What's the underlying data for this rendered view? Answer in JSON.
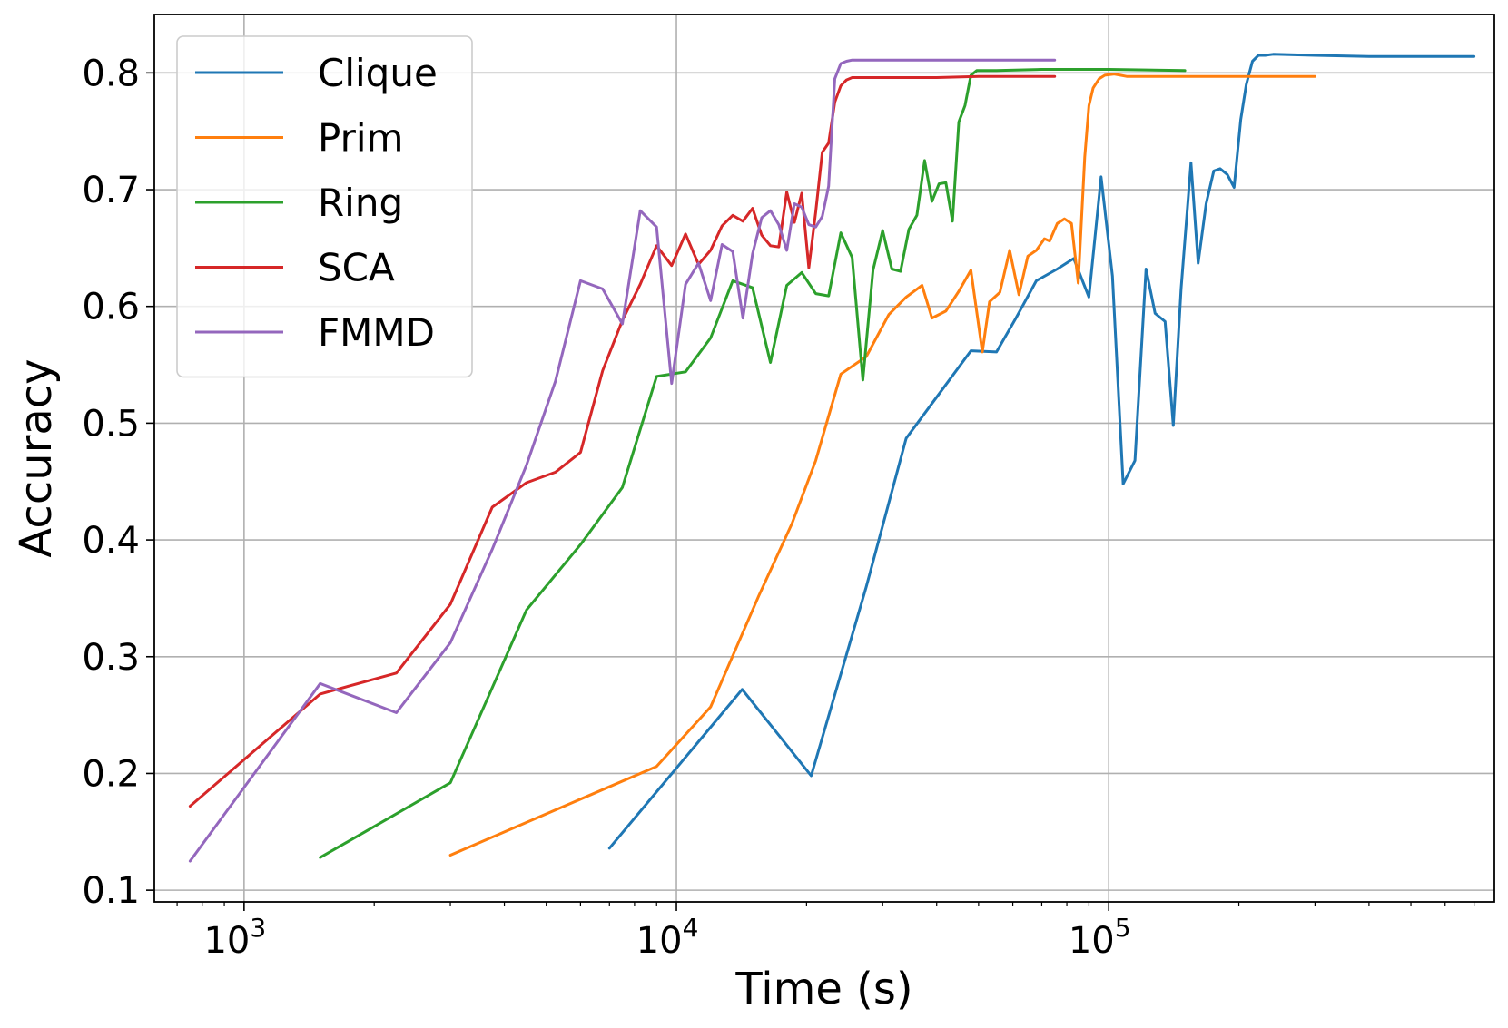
{
  "chart_data": {
    "type": "line",
    "title": "",
    "xlabel": "Time (s)",
    "ylabel": "Accuracy",
    "xscale": "log",
    "xlim": [
      620,
      780000
    ],
    "ylim": [
      0.09,
      0.85
    ],
    "grid": true,
    "legend_position": "upper-left",
    "x_ticks": [
      {
        "value": 1000,
        "base": "10",
        "exp": "3"
      },
      {
        "value": 10000,
        "base": "10",
        "exp": "4"
      },
      {
        "value": 100000,
        "base": "10",
        "exp": "5"
      }
    ],
    "y_ticks": [
      {
        "value": 0.1,
        "label": "0.1"
      },
      {
        "value": 0.2,
        "label": "0.2"
      },
      {
        "value": 0.3,
        "label": "0.3"
      },
      {
        "value": 0.4,
        "label": "0.4"
      },
      {
        "value": 0.5,
        "label": "0.5"
      },
      {
        "value": 0.6,
        "label": "0.6"
      },
      {
        "value": 0.7,
        "label": "0.7"
      },
      {
        "value": 0.8,
        "label": "0.8"
      }
    ],
    "series": [
      {
        "name": "Clique",
        "color": "#1f77b4",
        "x": [
          7000,
          14200,
          20500,
          27500,
          34000,
          40500,
          48000,
          55000,
          61000,
          68000,
          76000,
          83000,
          90000,
          96000,
          102000,
          108000,
          115000,
          122000,
          128000,
          135000,
          141000,
          147000,
          155000,
          161000,
          168000,
          175000,
          181000,
          188000,
          195000,
          202000,
          208000,
          215000,
          222000,
          230000,
          240000,
          300000,
          400000,
          500000,
          700000
        ],
        "y": [
          0.136,
          0.272,
          0.198,
          0.36,
          0.487,
          0.525,
          0.562,
          0.561,
          0.59,
          0.622,
          0.632,
          0.641,
          0.608,
          0.711,
          0.626,
          0.448,
          0.468,
          0.632,
          0.594,
          0.587,
          0.498,
          0.615,
          0.723,
          0.637,
          0.688,
          0.716,
          0.718,
          0.713,
          0.702,
          0.76,
          0.79,
          0.81,
          0.815,
          0.815,
          0.816,
          0.815,
          0.814,
          0.814,
          0.814
        ]
      },
      {
        "name": "Prim",
        "color": "#ff7f0e",
        "x": [
          3000,
          9000,
          12000,
          15500,
          18500,
          21000,
          24000,
          27500,
          31000,
          34000,
          37000,
          39000,
          42000,
          45000,
          48000,
          51000,
          53000,
          56000,
          59000,
          62000,
          65000,
          68000,
          71000,
          73000,
          76000,
          79000,
          82000,
          85000,
          88000,
          90000,
          92000,
          95000,
          98000,
          103000,
          110000,
          130000,
          200000,
          300000
        ],
        "y": [
          0.13,
          0.206,
          0.257,
          0.352,
          0.414,
          0.468,
          0.542,
          0.557,
          0.593,
          0.608,
          0.618,
          0.59,
          0.596,
          0.613,
          0.631,
          0.561,
          0.604,
          0.612,
          0.648,
          0.61,
          0.643,
          0.648,
          0.658,
          0.656,
          0.671,
          0.675,
          0.671,
          0.62,
          0.728,
          0.772,
          0.787,
          0.795,
          0.798,
          0.799,
          0.797,
          0.797,
          0.797,
          0.797
        ]
      },
      {
        "name": "Ring",
        "color": "#2ca02c",
        "x": [
          1500,
          3000,
          4500,
          6000,
          7500,
          9000,
          10500,
          12000,
          13500,
          15000,
          16500,
          18000,
          19500,
          21000,
          22500,
          24000,
          25500,
          27000,
          28500,
          30000,
          31500,
          33000,
          34500,
          36000,
          37500,
          39000,
          40500,
          42000,
          43500,
          45000,
          46500,
          48000,
          49500,
          51000,
          55000,
          70000,
          100000,
          150000
        ],
        "y": [
          0.128,
          0.192,
          0.34,
          0.396,
          0.445,
          0.54,
          0.544,
          0.573,
          0.622,
          0.616,
          0.552,
          0.618,
          0.629,
          0.611,
          0.609,
          0.663,
          0.642,
          0.537,
          0.631,
          0.665,
          0.632,
          0.63,
          0.666,
          0.678,
          0.725,
          0.69,
          0.705,
          0.706,
          0.673,
          0.758,
          0.772,
          0.798,
          0.802,
          0.802,
          0.802,
          0.803,
          0.803,
          0.802
        ]
      },
      {
        "name": "SCA",
        "color": "#d62728",
        "x": [
          750,
          1500,
          2250,
          3000,
          3750,
          4500,
          5250,
          6000,
          6750,
          7500,
          8250,
          9000,
          9750,
          10500,
          11250,
          12000,
          12750,
          13500,
          14250,
          15000,
          15750,
          16500,
          17250,
          18000,
          18750,
          19500,
          20250,
          21000,
          21750,
          22500,
          23250,
          24000,
          24750,
          25500,
          27000,
          30000,
          40000,
          50000,
          75000
        ],
        "y": [
          0.172,
          0.268,
          0.286,
          0.345,
          0.428,
          0.449,
          0.458,
          0.475,
          0.545,
          0.588,
          0.619,
          0.652,
          0.635,
          0.662,
          0.636,
          0.648,
          0.669,
          0.678,
          0.673,
          0.684,
          0.661,
          0.652,
          0.651,
          0.698,
          0.672,
          0.697,
          0.633,
          0.681,
          0.732,
          0.74,
          0.775,
          0.789,
          0.794,
          0.796,
          0.796,
          0.796,
          0.796,
          0.797,
          0.797
        ]
      },
      {
        "name": "FMMD",
        "color": "#9467bd",
        "x": [
          750,
          1500,
          2250,
          3000,
          3750,
          4500,
          5250,
          6000,
          6750,
          7500,
          8250,
          9000,
          9750,
          10500,
          11250,
          12000,
          12750,
          13500,
          14250,
          15000,
          15750,
          16500,
          17250,
          18000,
          18750,
          19500,
          20250,
          21000,
          21750,
          22500,
          23250,
          24000,
          24750,
          25500,
          27000,
          30000,
          40000,
          50000,
          75000
        ],
        "y": [
          0.125,
          0.277,
          0.252,
          0.312,
          0.392,
          0.464,
          0.536,
          0.622,
          0.615,
          0.585,
          0.682,
          0.668,
          0.534,
          0.619,
          0.637,
          0.605,
          0.653,
          0.647,
          0.59,
          0.645,
          0.676,
          0.682,
          0.67,
          0.648,
          0.688,
          0.685,
          0.67,
          0.668,
          0.677,
          0.703,
          0.795,
          0.808,
          0.81,
          0.811,
          0.811,
          0.811,
          0.811,
          0.811,
          0.811
        ]
      }
    ]
  }
}
